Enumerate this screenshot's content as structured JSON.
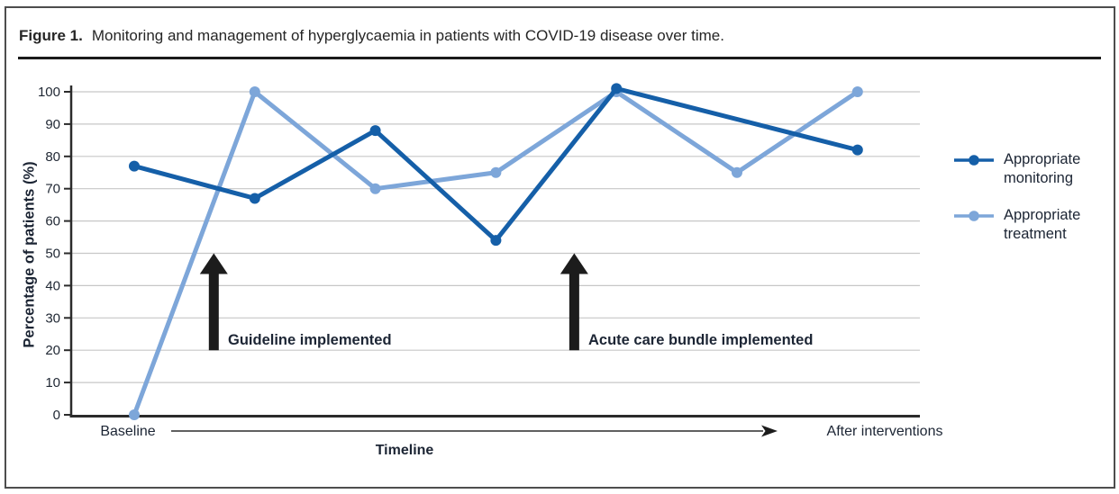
{
  "figure": {
    "label": "Figure 1.",
    "caption": "Monitoring and management of hyperglycaemia in patients with COVID-19 disease over time."
  },
  "chart_data": {
    "type": "line",
    "title": "",
    "ylabel": "Percentage of patients (%)",
    "xlabel": "Timeline",
    "x_axis_labels": {
      "start": "Baseline",
      "end": "After interventions"
    },
    "ylim": [
      0,
      100
    ],
    "yticks": [
      0,
      10,
      20,
      30,
      40,
      50,
      60,
      70,
      80,
      90,
      100
    ],
    "grid": true,
    "legend_position": "right",
    "categories": [
      "Baseline",
      "",
      "",
      "",
      "",
      "",
      "After interventions"
    ],
    "series": [
      {
        "name": "Appropriate monitoring",
        "color": "#155fa8",
        "values": [
          77,
          67,
          88,
          54,
          101,
          null,
          82
        ]
      },
      {
        "name": "Appropriate treatment",
        "color": "#7da6d9",
        "values": [
          0,
          100,
          70,
          75,
          100,
          75,
          100
        ]
      }
    ],
    "annotations": [
      {
        "text": "Guideline implemented",
        "arrow_x": 0.66,
        "arrow_from_pct": 20,
        "arrow_to_pct": 50
      },
      {
        "text": "Acute care bundle implemented",
        "arrow_x": 3.65,
        "arrow_from_pct": 20,
        "arrow_to_pct": 50
      }
    ],
    "colors": {
      "grid": "#c7c7c7",
      "axis": "#2b2b2b",
      "text": "#1f2733",
      "arrow": "#1c1c1c"
    }
  },
  "legend": {
    "items": [
      {
        "line1": "Appropriate",
        "line2": "monitoring",
        "color": "#155fa8"
      },
      {
        "line1": "Appropriate",
        "line2": "treatment",
        "color": "#7da6d9"
      }
    ]
  }
}
